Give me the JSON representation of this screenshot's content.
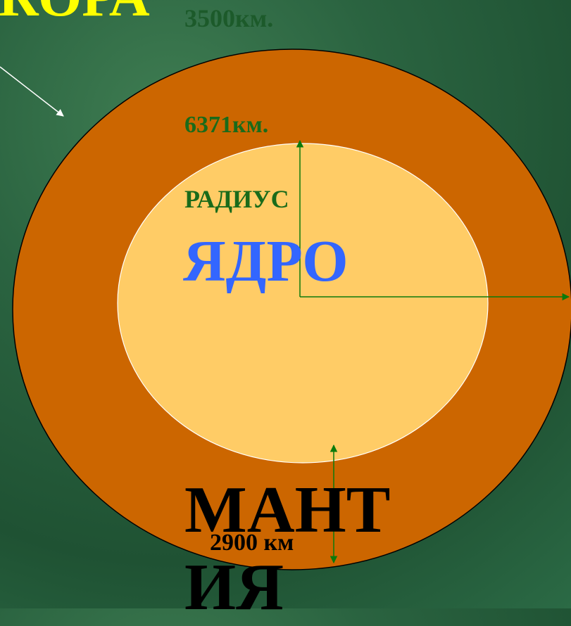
{
  "labels": {
    "crust": "КОРА",
    "core_radius": "3500км.",
    "earth_radius": "6371км.",
    "radius": "РАДИУС",
    "core": "ЯДРО",
    "mantle": "МАНТИЯ",
    "mantle_depth": "2900 км"
  }
}
